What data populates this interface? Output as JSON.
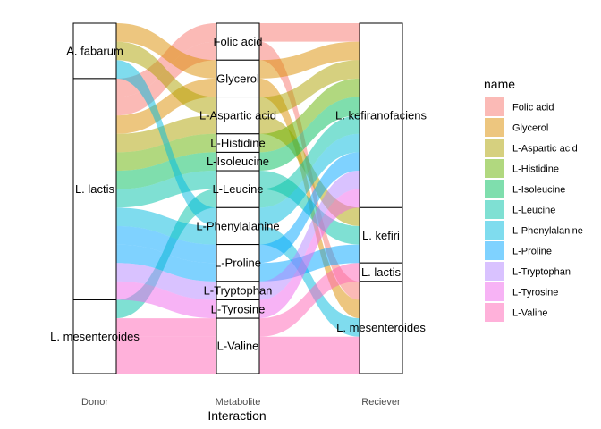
{
  "chart_data": {
    "type": "alluvial",
    "xlabel": "Interaction",
    "axes": [
      "Donor",
      "Metabolite",
      "Reciever"
    ],
    "legend": {
      "title": "name",
      "position": "right"
    },
    "strata": {
      "Donor": [
        "A. fabarum",
        "L. lactis",
        "L. mesenteroides"
      ],
      "Metabolite": [
        "Folic acid",
        "Glycerol",
        "L-Aspartic acid",
        "L-Histidine",
        "L-Isoleucine",
        "L-Leucine",
        "L-Phenylalanine",
        "L-Proline",
        "L-Tryptophan",
        "L-Tyrosine",
        "L-Valine"
      ],
      "Reciever": [
        "L. kefiranofaciens",
        "L. kefiri",
        "L. lactis",
        "L. mesenteroides"
      ]
    },
    "colors": {
      "Folic acid": "#F8766D",
      "Glycerol": "#DB8E00",
      "L-Aspartic acid": "#AEA200",
      "L-Histidine": "#64B200",
      "L-Isoleucine": "#00BD5C",
      "L-Leucine": "#00C1A7",
      "L-Phenylalanine": "#00BADE",
      "L-Proline": "#00A6FF",
      "L-Tryptophan": "#B385FF",
      "L-Tyrosine": "#EF67EB",
      "L-Valine": "#FF63B6"
    },
    "flows": [
      {
        "donor": "L. lactis",
        "metabolite": "Folic acid",
        "reciever": "L. kefiranofaciens",
        "value": 1
      },
      {
        "donor": "L. lactis",
        "metabolite": "Folic acid",
        "reciever": "L. mesenteroides",
        "value": 1
      },
      {
        "donor": "A. fabarum",
        "metabolite": "Glycerol",
        "reciever": "L. kefiranofaciens",
        "value": 1
      },
      {
        "donor": "L. lactis",
        "metabolite": "Glycerol",
        "reciever": "L. mesenteroides",
        "value": 1
      },
      {
        "donor": "A. fabarum",
        "metabolite": "L-Aspartic acid",
        "reciever": "L. kefiranofaciens",
        "value": 1
      },
      {
        "donor": "L. lactis",
        "metabolite": "L-Aspartic acid",
        "reciever": "L. kefiri",
        "value": 1
      },
      {
        "donor": "L. lactis",
        "metabolite": "L-Histidine",
        "reciever": "L. kefiranofaciens",
        "value": 1
      },
      {
        "donor": "L. lactis",
        "metabolite": "L-Isoleucine",
        "reciever": "L. kefiranofaciens",
        "value": 1
      },
      {
        "donor": "L. lactis",
        "metabolite": "L-Leucine",
        "reciever": "L. kefiri",
        "value": 1
      },
      {
        "donor": "L. mesenteroides",
        "metabolite": "L-Leucine",
        "reciever": "L. kefiranofaciens",
        "value": 1
      },
      {
        "donor": "A. fabarum",
        "metabolite": "L-Phenylalanine",
        "reciever": "L. kefiranofaciens",
        "value": 1
      },
      {
        "donor": "L. lactis",
        "metabolite": "L-Phenylalanine",
        "reciever": "L. mesenteroides",
        "value": 1
      },
      {
        "donor": "L. lactis",
        "metabolite": "L-Proline",
        "reciever": "L. kefiranofaciens",
        "value": 1
      },
      {
        "donor": "L. lactis",
        "metabolite": "L-Proline",
        "reciever": "L. kefiri",
        "value": 1
      },
      {
        "donor": "L. lactis",
        "metabolite": "L-Tryptophan",
        "reciever": "L. kefiranofaciens",
        "value": 1
      },
      {
        "donor": "L. lactis",
        "metabolite": "L-Tyrosine",
        "reciever": "L. kefiranofaciens",
        "value": 1
      },
      {
        "donor": "L. mesenteroides",
        "metabolite": "L-Valine",
        "reciever": "L. lactis",
        "value": 1
      },
      {
        "donor": "L. mesenteroides",
        "metabolite": "L-Valine",
        "reciever": "L. mesenteroides",
        "value": 2
      }
    ]
  }
}
